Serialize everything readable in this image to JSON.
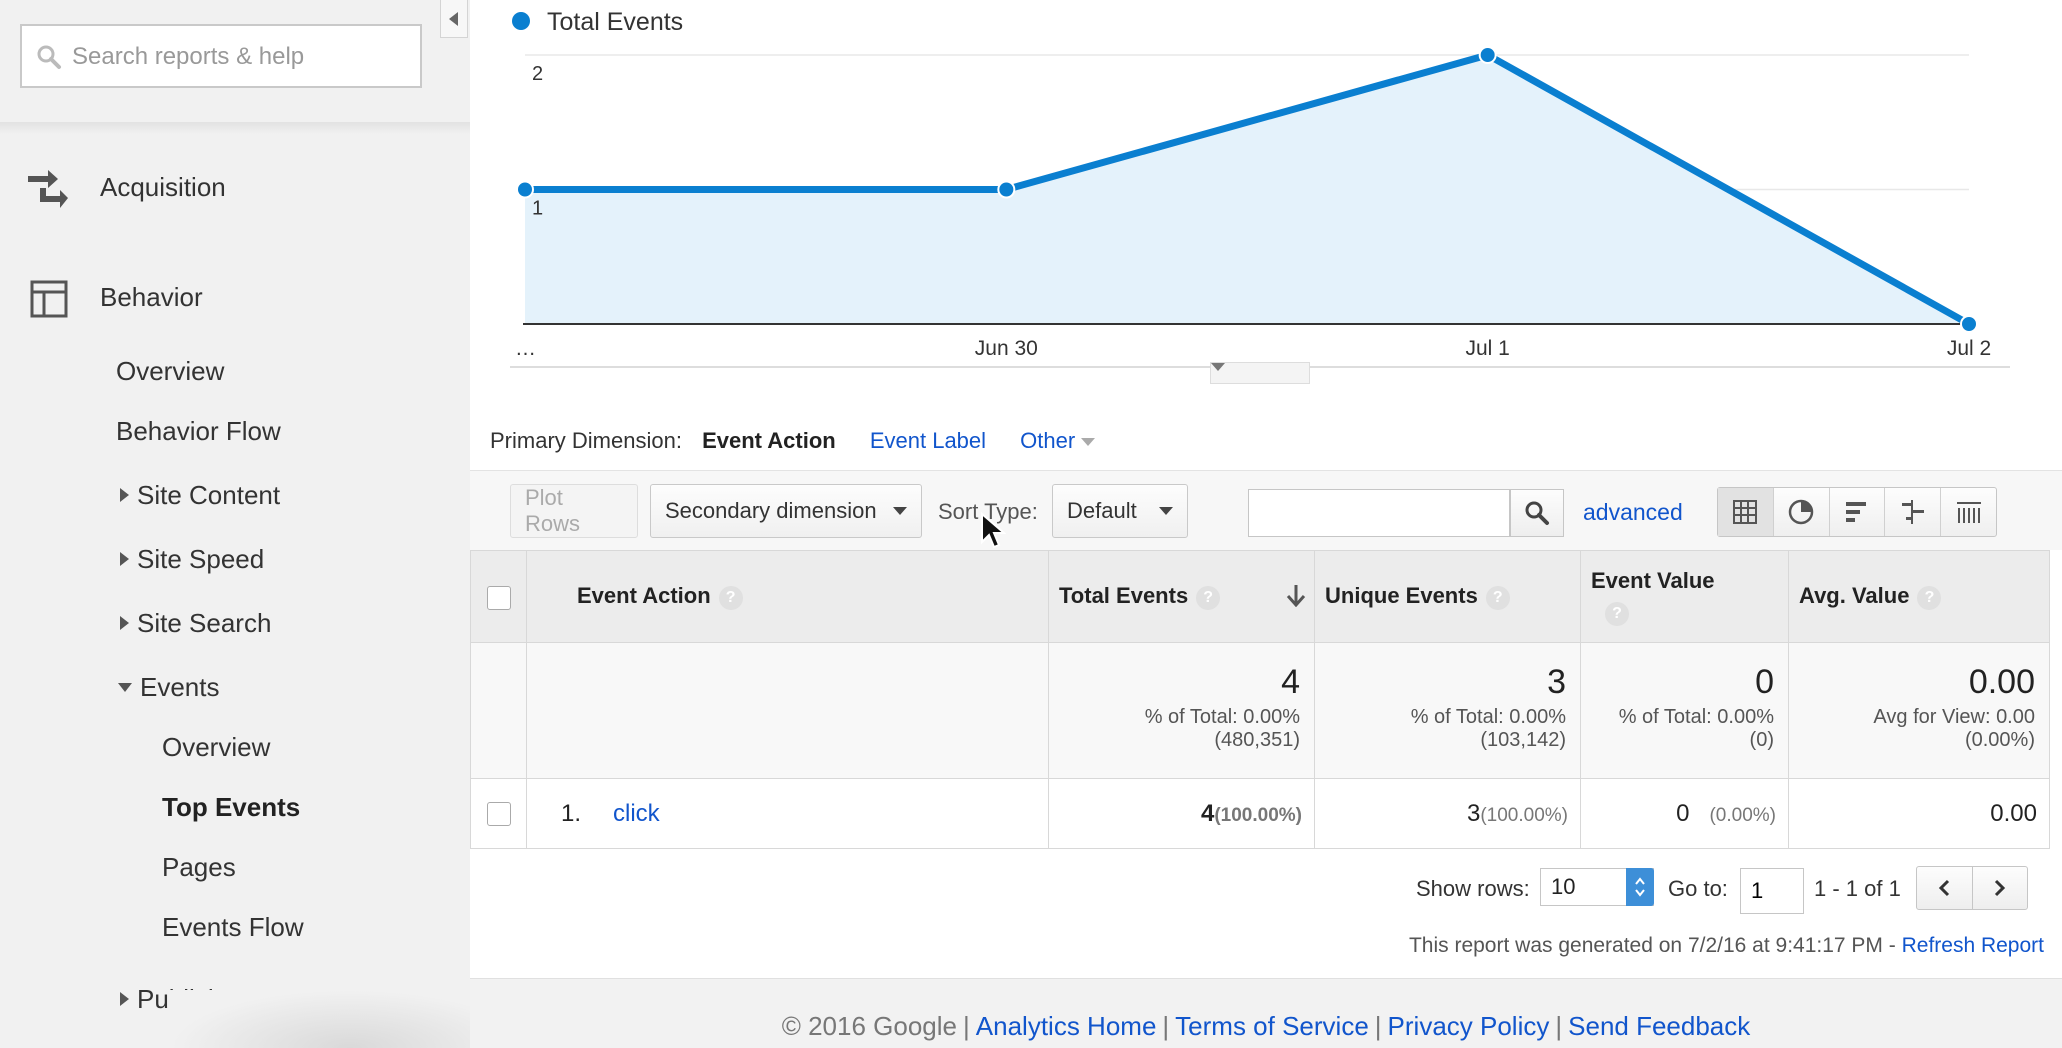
{
  "sidebar": {
    "search_placeholder": "Search reports & help",
    "sections": [
      {
        "label": "Acquisition",
        "icon": "acquisition-icon"
      },
      {
        "label": "Behavior",
        "icon": "behavior-icon"
      }
    ],
    "behavior_items": [
      "Overview",
      "Behavior Flow"
    ],
    "behavior_groups": [
      "Site Content",
      "Site Speed",
      "Site Search",
      "Events",
      "Publisher"
    ],
    "events_items": [
      "Overview",
      "Top Events",
      "Pages",
      "Events Flow"
    ],
    "active_item": "Top Events"
  },
  "chart_data": {
    "type": "area",
    "legend": "Total Events",
    "series_color": "#0a7fd0",
    "x": [
      "…",
      "Jun 30",
      "Jul 1",
      "Jul 2"
    ],
    "values": [
      1,
      1,
      2,
      0
    ],
    "yticks": [
      1,
      2
    ],
    "ylim": [
      0,
      2
    ]
  },
  "primary_dimension": {
    "label": "Primary Dimension:",
    "current": "Event Action",
    "options": [
      "Event Label",
      "Other"
    ]
  },
  "toolbar": {
    "plot_rows": "Plot Rows",
    "secondary_dimension": "Secondary dimension",
    "sort_type_label": "Sort Type:",
    "sort_type_value": "Default",
    "advanced": "advanced"
  },
  "table": {
    "headers": [
      "Event Action",
      "Total Events",
      "Unique Events",
      "Event Value",
      "Avg. Value"
    ],
    "totals": {
      "total_events": {
        "value": "4",
        "line1": "% of Total: 0.00%",
        "line2": "(480,351)"
      },
      "unique_events": {
        "value": "3",
        "line1": "% of Total: 0.00%",
        "line2": "(103,142)"
      },
      "event_value": {
        "value": "0",
        "line1": "% of Total: 0.00%",
        "line2": "(0)"
      },
      "avg_value": {
        "value": "0.00",
        "line1": "Avg for View: 0.00",
        "line2": "(0.00%)"
      }
    },
    "rows": [
      {
        "index": "1.",
        "action": "click",
        "total_events": "4",
        "total_pct": "(100.00%)",
        "unique_events": "3",
        "unique_pct": "(100.00%)",
        "event_value": "0",
        "event_pct": "(0.00%)",
        "avg_value": "0.00"
      }
    ]
  },
  "pager": {
    "show_rows_label": "Show rows:",
    "show_rows_value": "10",
    "goto_label": "Go to:",
    "goto_value": "1",
    "range": "1 - 1 of 1"
  },
  "generated": {
    "text": "This report was generated on 7/2/16 at 9:41:17 PM -",
    "refresh": "Refresh Report"
  },
  "footer": {
    "copyright": "© 2016 Google",
    "links": [
      "Analytics Home",
      "Terms of Service",
      "Privacy Policy",
      "Send Feedback"
    ]
  }
}
